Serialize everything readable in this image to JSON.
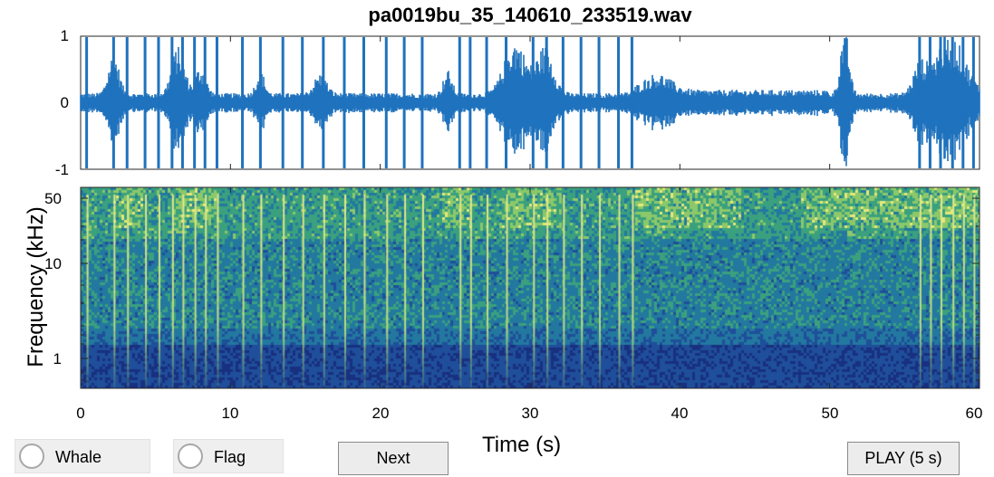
{
  "window": {
    "title": "pa0019bu_35_140610_233519.wav"
  },
  "waveform": {
    "y_tick_labels": [
      "1",
      "0",
      "-1"
    ],
    "color": "#1f72bd"
  },
  "spectrogram": {
    "y_label": "Frequency (kHz)",
    "y_tick_labels": [
      "50",
      "10",
      "1"
    ],
    "x_label": "Time (s)",
    "x_tick_labels": [
      "0",
      "10",
      "20",
      "30",
      "40",
      "50",
      "60"
    ],
    "colormap": [
      "#18307f",
      "#1f4e9a",
      "#22789e",
      "#3aa07e",
      "#8cc86a",
      "#e6e87a"
    ]
  },
  "controls": {
    "whale_label": "Whale",
    "flag_label": "Flag",
    "next_label": "Next",
    "play_label": "PLAY (5 s)"
  }
}
